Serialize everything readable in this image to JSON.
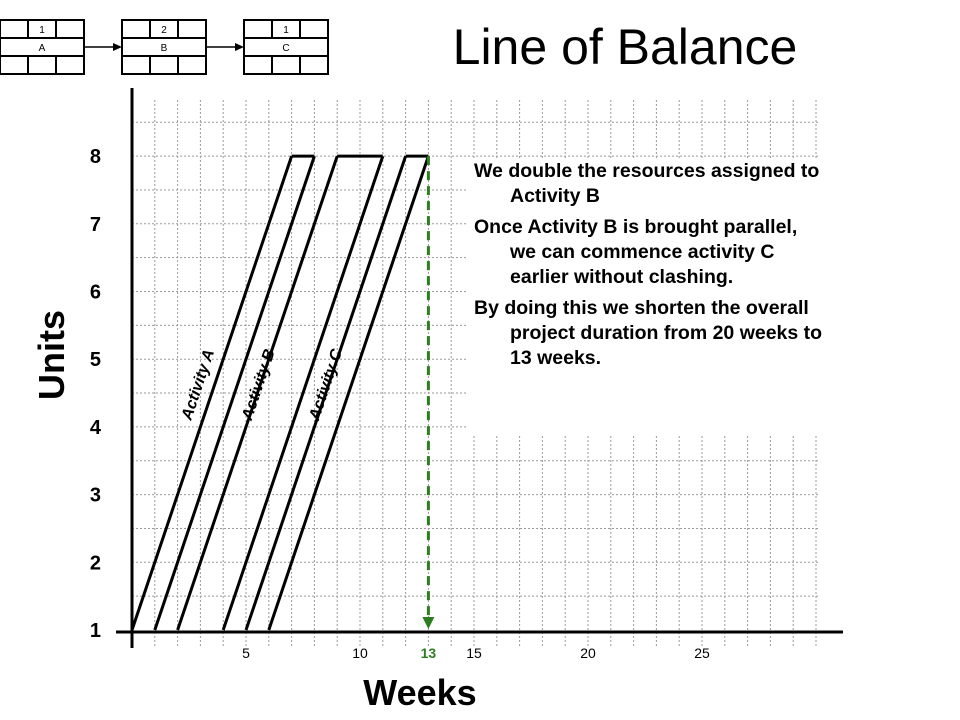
{
  "title": "Line of Balance",
  "notes": [
    "We double the resources assigned to Activity B",
    "Once Activity B is brought parallel, we can commence activity C earlier without clashing.",
    "By doing this we shorten the overall project duration from 20 weeks to 13 weeks."
  ],
  "network": {
    "nodes": [
      {
        "top": "1",
        "label": "A"
      },
      {
        "top": "2",
        "label": "B"
      },
      {
        "top": "1",
        "label": "C"
      }
    ]
  },
  "chart_data": {
    "type": "line",
    "xlabel": "Weeks",
    "ylabel": "Units",
    "xlim": [
      0,
      31
    ],
    "ylim": [
      1,
      8.6
    ],
    "x_ticks": [
      {
        "value": 5,
        "label": "5"
      },
      {
        "value": 10,
        "label": "10"
      },
      {
        "value": 13,
        "label": "13",
        "highlight": true
      },
      {
        "value": 15,
        "label": "15"
      },
      {
        "value": 20,
        "label": "20"
      },
      {
        "value": 25,
        "label": "25"
      }
    ],
    "y_ticks": [
      1,
      2,
      3,
      4,
      5,
      6,
      7,
      8
    ],
    "grid": true,
    "activities": [
      {
        "name": "Activity A",
        "start_line": [
          [
            0,
            1
          ],
          [
            7,
            8
          ]
        ],
        "finish_line": [
          [
            1,
            1
          ],
          [
            8,
            8
          ]
        ]
      },
      {
        "name": "Activity B",
        "start_line": [
          [
            2,
            1
          ],
          [
            9,
            8
          ]
        ],
        "finish_line": [
          [
            4,
            1
          ],
          [
            11,
            8
          ]
        ]
      },
      {
        "name": "Activity C",
        "start_line": [
          [
            5,
            1
          ],
          [
            12,
            8
          ]
        ],
        "finish_line": [
          [
            6,
            1
          ],
          [
            13,
            8
          ]
        ]
      }
    ],
    "annotation": {
      "x": 13,
      "y_from": 8,
      "y_to": 1,
      "style": "dashed-arrow",
      "color": "#2e7d1f"
    },
    "highlight_color": "#2e7d1f"
  }
}
